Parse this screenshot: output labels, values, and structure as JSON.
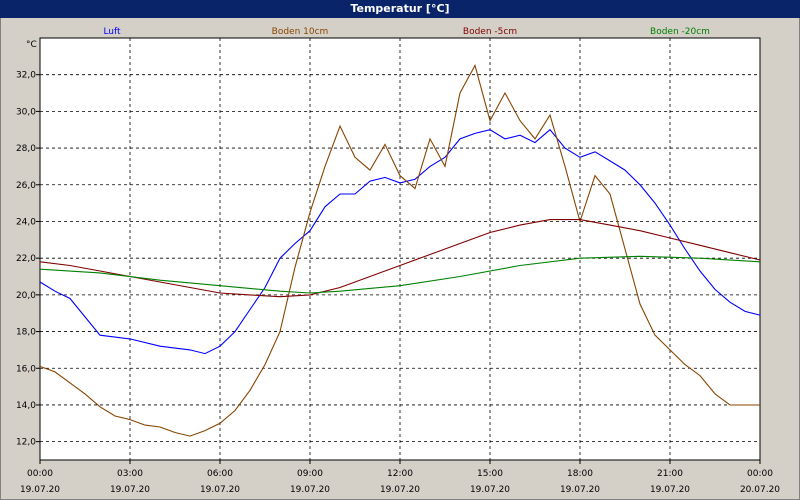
{
  "window": {
    "title": "Temperatur [°C]"
  },
  "chart_data": {
    "type": "line",
    "ylabel": "°C",
    "xlim": [
      "2020-07-19 00:00",
      "2020-07-20 00:00"
    ],
    "ylim": [
      11,
      34
    ],
    "grid": true,
    "legend": "top",
    "y_ticks": [
      "12,0",
      "14,0",
      "16,0",
      "18,0",
      "20,0",
      "22,0",
      "24,0",
      "26,0",
      "28,0",
      "30,0",
      "32,0"
    ],
    "y_tick_values": [
      12,
      14,
      16,
      18,
      20,
      22,
      24,
      26,
      28,
      30,
      32
    ],
    "x_ticks": [
      {
        "time": "00:00",
        "date": "19.07.20"
      },
      {
        "time": "03:00",
        "date": "19.07.20"
      },
      {
        "time": "06:00",
        "date": "19.07.20"
      },
      {
        "time": "09:00",
        "date": "19.07.20"
      },
      {
        "time": "12:00",
        "date": "19.07.20"
      },
      {
        "time": "15:00",
        "date": "19.07.20"
      },
      {
        "time": "18:00",
        "date": "19.07.20"
      },
      {
        "time": "21:00",
        "date": "19.07.20"
      },
      {
        "time": "00:00",
        "date": "20.07.20"
      }
    ],
    "x_tick_hours": [
      0,
      3,
      6,
      9,
      12,
      15,
      18,
      21,
      24
    ],
    "series": [
      {
        "name": "Luft",
        "color": "#0000ff",
        "x": [
          0,
          0.5,
          1,
          1.5,
          2,
          3,
          4,
          5,
          5.5,
          6,
          6.5,
          7,
          7.5,
          8,
          8.5,
          9,
          9.5,
          10,
          10.5,
          11,
          11.5,
          12,
          12.5,
          13,
          13.5,
          14,
          14.5,
          15,
          15.5,
          16,
          16.5,
          17,
          17.5,
          18,
          18.5,
          19,
          19.5,
          20,
          20.5,
          21,
          21.5,
          22,
          22.5,
          23,
          23.5,
          24
        ],
        "y": [
          20.7,
          20.2,
          19.8,
          18.8,
          17.8,
          17.6,
          17.2,
          17.0,
          16.8,
          17.2,
          18.0,
          19.2,
          20.4,
          22.0,
          22.8,
          23.5,
          24.8,
          25.5,
          25.5,
          26.2,
          26.4,
          26.1,
          26.3,
          27.0,
          27.5,
          28.5,
          28.8,
          29.0,
          28.5,
          28.7,
          28.3,
          29.0,
          28.0,
          27.5,
          27.8,
          27.3,
          26.8,
          26.0,
          25.0,
          23.8,
          22.5,
          21.3,
          20.3,
          19.6,
          19.1,
          18.9
        ]
      },
      {
        "name": "Boden 10cm",
        "color": "#884400",
        "x": [
          0,
          0.5,
          1,
          1.5,
          2,
          2.5,
          3,
          3.5,
          4,
          4.5,
          5,
          5.5,
          6,
          6.5,
          7,
          7.5,
          8,
          8.5,
          9,
          9.5,
          10,
          10.5,
          11,
          11.5,
          12,
          12.5,
          13,
          13.5,
          14,
          14.5,
          15,
          15.5,
          16,
          16.5,
          17,
          17.5,
          18,
          18.5,
          19,
          19.5,
          20,
          20.5,
          21,
          21.5,
          22,
          22.5,
          23,
          23.5,
          24
        ],
        "y": [
          16.1,
          15.8,
          15.2,
          14.6,
          13.9,
          13.4,
          13.2,
          12.9,
          12.8,
          12.5,
          12.3,
          12.6,
          13.0,
          13.7,
          14.8,
          16.2,
          18.0,
          21.5,
          24.5,
          27.0,
          29.2,
          27.5,
          26.8,
          28.2,
          26.5,
          25.8,
          28.5,
          27.0,
          31.0,
          32.5,
          29.5,
          31.0,
          29.5,
          28.5,
          29.8,
          27.0,
          24.0,
          26.5,
          25.5,
          22.5,
          19.5,
          17.8,
          17.0,
          16.2,
          15.6,
          14.6,
          14.0,
          14.0,
          14.0
        ]
      },
      {
        "name": "Boden -5cm",
        "color": "#800000",
        "x": [
          0,
          1,
          2,
          3,
          4,
          5,
          6,
          7,
          8,
          9,
          10,
          11,
          12,
          13,
          14,
          15,
          16,
          17,
          18,
          19,
          20,
          21,
          22,
          23,
          24
        ],
        "y": [
          21.8,
          21.6,
          21.3,
          21.0,
          20.7,
          20.4,
          20.1,
          20.0,
          19.9,
          20.0,
          20.4,
          21.0,
          21.6,
          22.2,
          22.8,
          23.4,
          23.8,
          24.1,
          24.1,
          23.8,
          23.5,
          23.1,
          22.7,
          22.3,
          21.9
        ]
      },
      {
        "name": "Boden -20cm",
        "color": "#008000",
        "x": [
          0,
          2,
          4,
          6,
          8,
          9,
          10,
          12,
          14,
          16,
          18,
          20,
          22,
          24
        ],
        "y": [
          21.4,
          21.2,
          20.8,
          20.5,
          20.2,
          20.1,
          20.2,
          20.5,
          21.0,
          21.6,
          22.0,
          22.1,
          22.0,
          21.8
        ]
      }
    ]
  }
}
